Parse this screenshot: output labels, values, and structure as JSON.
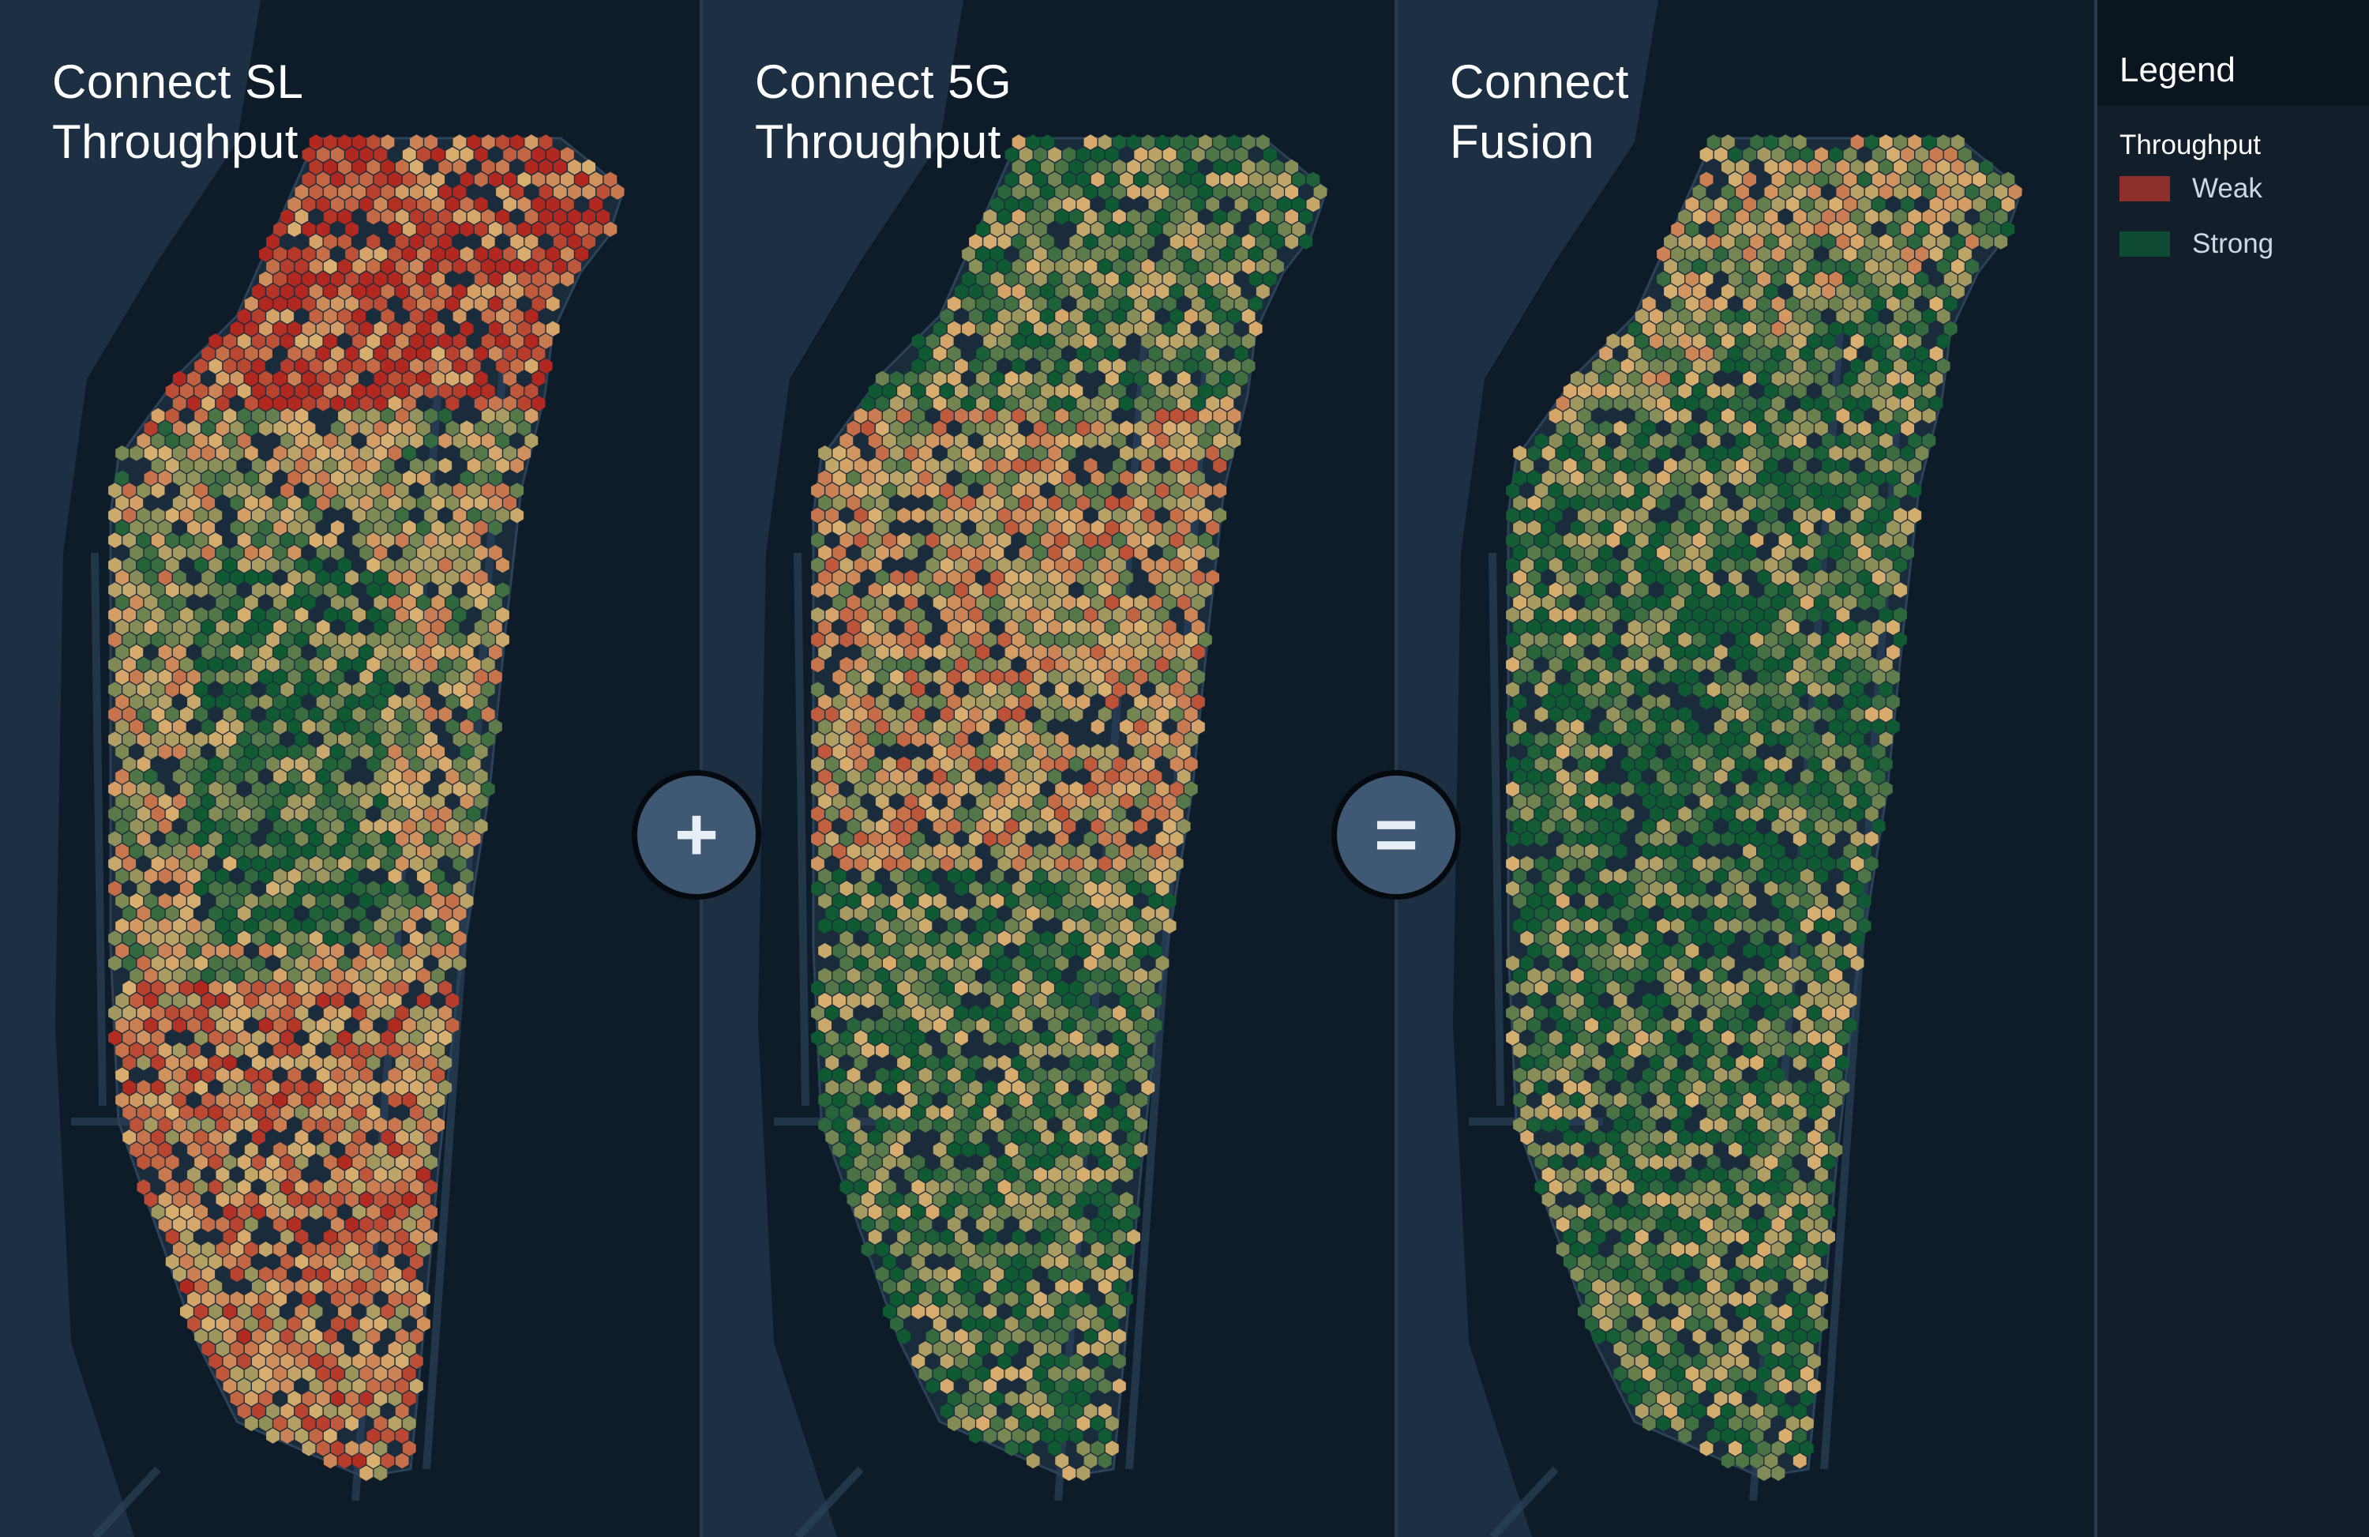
{
  "panels": [
    {
      "id": "sl",
      "title_line1": "Connect SL",
      "title_line2": "Throughput",
      "profile": "sl"
    },
    {
      "id": "5g",
      "title_line1": "Connect 5G",
      "title_line2": "Throughput",
      "profile": "5g"
    },
    {
      "id": "fusion",
      "title_line1": "Connect",
      "title_line2": "Fusion",
      "profile": "fusion"
    }
  ],
  "operators": {
    "plus": "+",
    "equals": "="
  },
  "legend": {
    "title": "Legend",
    "subtitle": "Throughput",
    "items": [
      {
        "label": "Weak",
        "color": "#8e2f2c"
      },
      {
        "label": "Strong",
        "color": "#0f4a33"
      }
    ]
  },
  "colors": {
    "background": "#14202f",
    "water": "#0e1b28",
    "land": "#1d2f42",
    "roads": "#2b4258",
    "weak": "#b0281f",
    "medium": "#d9b070",
    "strong": "#0f5a33"
  }
}
